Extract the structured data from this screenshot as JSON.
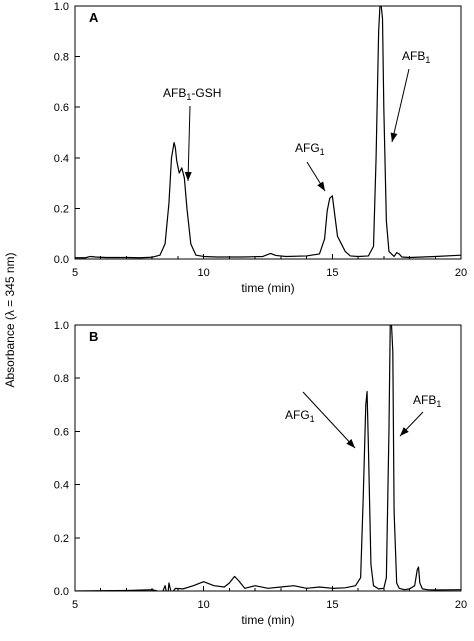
{
  "chart_data": [
    {
      "type": "line",
      "panel_label": "A",
      "xlabel": "time (min)",
      "ylabel": "Absorbance (λ = 345 nm)",
      "xlim": [
        5,
        20
      ],
      "ylim": [
        0.0,
        1.0
      ],
      "x_ticks": [
        "5",
        "10",
        "15",
        "20"
      ],
      "y_ticks": [
        "0.0",
        "0.2",
        "0.4",
        "0.6",
        "0.8",
        "1.0"
      ],
      "grid": false,
      "series": [
        {
          "x": [
            5.0,
            5.4,
            5.6,
            5.8,
            6.2,
            7.0,
            7.5,
            8.0,
            8.3,
            8.5,
            8.65,
            8.75,
            8.85,
            8.9,
            8.95,
            9.05,
            9.15,
            9.25,
            9.35,
            9.5,
            9.7,
            10.0,
            10.5,
            11.5,
            12.3,
            12.6,
            12.8,
            13.2,
            14.0,
            14.5,
            14.7,
            14.8,
            14.9,
            15.0,
            15.1,
            15.2,
            15.35,
            15.5,
            15.7,
            16.0,
            16.4,
            16.6,
            16.7,
            16.8,
            16.85,
            16.9,
            16.95,
            17.0,
            17.1,
            17.2,
            17.4,
            17.5,
            17.6,
            17.7,
            18.0,
            19.0,
            20.0
          ],
          "y": [
            0.005,
            0.005,
            0.01,
            0.008,
            0.006,
            0.006,
            0.005,
            0.007,
            0.015,
            0.06,
            0.22,
            0.4,
            0.46,
            0.44,
            0.39,
            0.34,
            0.36,
            0.32,
            0.2,
            0.06,
            0.015,
            0.01,
            0.008,
            0.008,
            0.01,
            0.022,
            0.014,
            0.01,
            0.012,
            0.02,
            0.08,
            0.19,
            0.24,
            0.25,
            0.17,
            0.09,
            0.06,
            0.03,
            0.012,
            0.01,
            0.012,
            0.05,
            0.4,
            0.9,
            1.0,
            1.0,
            0.95,
            0.6,
            0.15,
            0.03,
            0.01,
            0.025,
            0.02,
            0.008,
            0.006,
            0.01,
            0.015
          ]
        }
      ],
      "annotations": [
        {
          "text": "AFB",
          "sub": "1",
          "suffix": "-GSH",
          "x": 9.15,
          "y": 0.285
        },
        {
          "text": "AFG",
          "sub": "1",
          "suffix": "",
          "x": 14.9,
          "y": 0.245
        },
        {
          "text": "AFB",
          "sub": "1",
          "suffix": "",
          "x": 17.05,
          "y": 0.44
        }
      ]
    },
    {
      "type": "line",
      "panel_label": "B",
      "xlabel": "time (min)",
      "ylabel": "Absorbance (λ = 345 nm)",
      "xlim": [
        5,
        20
      ],
      "ylim": [
        0.0,
        1.0
      ],
      "x_ticks": [
        "5",
        "10",
        "15",
        "20"
      ],
      "y_ticks": [
        "0.0",
        "0.2",
        "0.4",
        "0.6",
        "0.8",
        "1.0"
      ],
      "grid": false,
      "series": [
        {
          "x": [
            5.0,
            6.0,
            7.0,
            8.0,
            8.2,
            8.35,
            8.5,
            8.6,
            8.65,
            8.75,
            8.9,
            9.2,
            9.6,
            10.0,
            10.4,
            10.8,
            11.0,
            11.2,
            11.35,
            11.6,
            12.0,
            12.5,
            13.0,
            13.5,
            14.0,
            14.5,
            15.0,
            15.5,
            15.9,
            16.1,
            16.2,
            16.3,
            16.35,
            16.4,
            16.5,
            16.6,
            16.8,
            17.0,
            17.1,
            17.2,
            17.25,
            17.3,
            17.35,
            17.4,
            17.5,
            17.6,
            17.8,
            18.0,
            18.2,
            18.3,
            18.35,
            18.4,
            18.5,
            18.7,
            19.0,
            20.0
          ],
          "y": [
            0.0,
            0.001,
            0.002,
            0.005,
            0.0,
            -0.015,
            0.02,
            -0.025,
            0.03,
            -0.01,
            0.01,
            0.008,
            0.02,
            0.035,
            0.02,
            0.015,
            0.03,
            0.055,
            0.04,
            0.01,
            0.02,
            0.01,
            0.015,
            0.02,
            0.01,
            0.015,
            0.01,
            0.012,
            0.02,
            0.05,
            0.35,
            0.7,
            0.75,
            0.55,
            0.1,
            0.02,
            0.008,
            0.01,
            0.05,
            0.6,
            1.0,
            1.0,
            0.9,
            0.3,
            0.03,
            0.01,
            0.005,
            0.008,
            0.02,
            0.08,
            0.09,
            0.03,
            0.008,
            0.005,
            0.004,
            0.005
          ]
        }
      ],
      "annotations": [
        {
          "text": "AFG",
          "sub": "1",
          "suffix": "",
          "x": 16.2,
          "y": 0.56
        },
        {
          "text": "AFB",
          "sub": "1",
          "suffix": "",
          "x": 17.4,
          "y": 0.56
        }
      ]
    }
  ]
}
